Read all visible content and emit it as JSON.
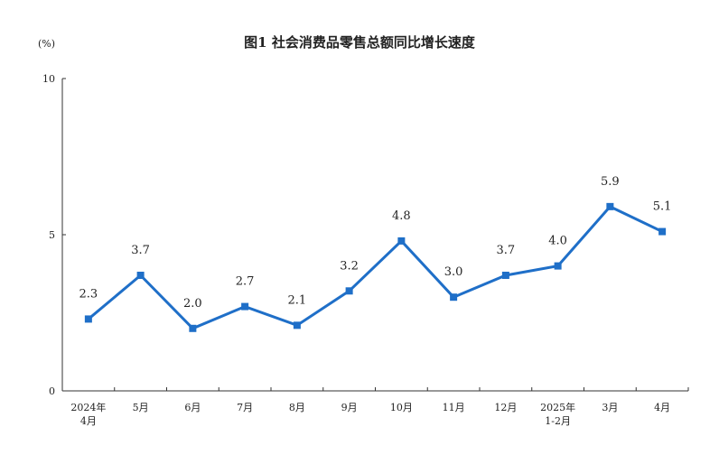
{
  "chart_data": {
    "type": "line",
    "title": "图1  社会消费品零售总额同比增长速度",
    "unit": "(%)",
    "ylim": [
      0,
      10
    ],
    "yticks": [
      "0",
      "5",
      "10"
    ],
    "categories": [
      [
        "2024年",
        "4月"
      ],
      [
        "5月"
      ],
      [
        "6月"
      ],
      [
        "7月"
      ],
      [
        "8月"
      ],
      [
        "9月"
      ],
      [
        "10月"
      ],
      [
        "11月"
      ],
      [
        "12月"
      ],
      [
        "2025年",
        "1-2月"
      ],
      [
        "3月"
      ],
      [
        "4月"
      ]
    ],
    "values": [
      2.3,
      3.7,
      2.0,
      2.7,
      2.1,
      3.2,
      4.8,
      3.0,
      3.7,
      4.0,
      5.9,
      5.1
    ],
    "labels": [
      "2.3",
      "3.7",
      "2.0",
      "2.7",
      "2.1",
      "3.2",
      "4.8",
      "3.0",
      "3.7",
      "4.0",
      "5.9",
      "5.1"
    ],
    "line_color": "#1f6fc8",
    "grid": false
  }
}
